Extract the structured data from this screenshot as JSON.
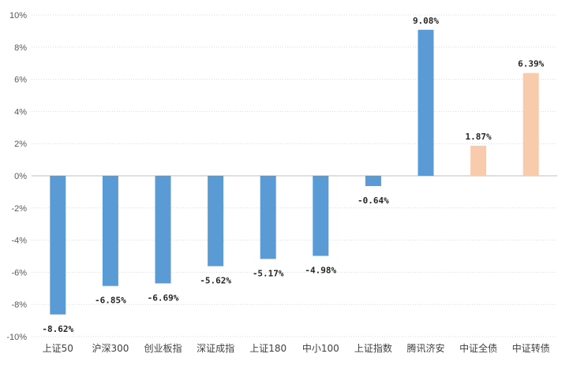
{
  "chart_data": {
    "type": "bar",
    "title": "",
    "xlabel": "",
    "ylabel": "",
    "ylim": [
      -10,
      10
    ],
    "y_ticks": [
      -10,
      -8,
      -6,
      -4,
      -2,
      0,
      2,
      4,
      6,
      8,
      10
    ],
    "y_tick_labels": [
      "-10%",
      "-8%",
      "-6%",
      "-4%",
      "-2%",
      "0%",
      "2%",
      "4%",
      "6%",
      "8%",
      "10%"
    ],
    "grid": true,
    "legend": "none",
    "categories": [
      "上证50",
      "沪深300",
      "创业板指",
      "深证成指",
      "上证180",
      "中小100",
      "上证指数",
      "腾讯济安",
      "中证全债",
      "中证转债"
    ],
    "values": [
      -8.62,
      -6.85,
      -6.69,
      -5.62,
      -5.17,
      -4.98,
      -0.64,
      9.08,
      1.87,
      6.39
    ],
    "value_labels": [
      "-8.62%",
      "-6.85%",
      "-6.69%",
      "-5.62%",
      "-5.17%",
      "-4.98%",
      "-0.64%",
      "9.08%",
      "1.87%",
      "6.39%"
    ],
    "colors": [
      "#5b9bd5",
      "#5b9bd5",
      "#5b9bd5",
      "#5b9bd5",
      "#5b9bd5",
      "#5b9bd5",
      "#5b9bd5",
      "#5b9bd5",
      "#f8cbad",
      "#f8cbad"
    ],
    "grid_color": "#d9d9d9",
    "axis_color": "#bfbfbf"
  }
}
